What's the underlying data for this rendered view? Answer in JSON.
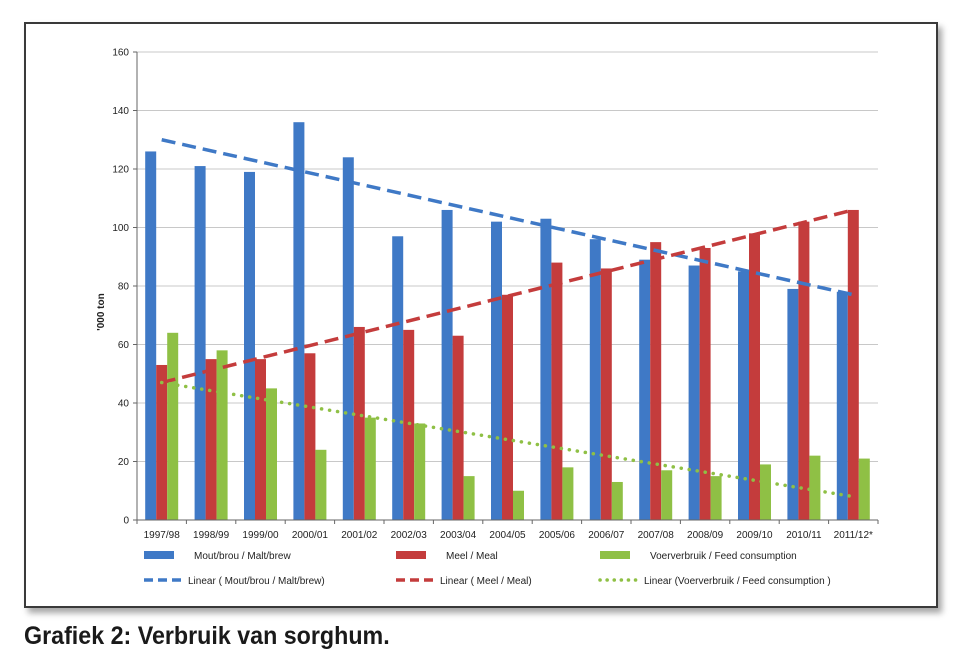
{
  "caption": "Grafiek 2: Verbruik van sorghum.",
  "chart_data": {
    "type": "bar",
    "categories": [
      "1997/98",
      "1998/99",
      "1999/00",
      "2000/01",
      "2001/02",
      "2002/03",
      "2003/04",
      "2004/05",
      "2005/06",
      "2006/07",
      "2007/08",
      "2008/09",
      "2009/10",
      "2010/11",
      "2011/12*"
    ],
    "ylabel": "'000 ton",
    "ylim": [
      0,
      160
    ],
    "yticks": [
      0,
      20,
      40,
      60,
      80,
      100,
      120,
      140,
      160
    ],
    "grid": true,
    "legend_position": "bottom",
    "series": [
      {
        "name": "Mout/brou / Malt/brew",
        "color": "#3f79c6",
        "values": [
          126,
          121,
          119,
          136,
          124,
          97,
          106,
          102,
          103,
          96,
          89,
          87,
          85,
          79,
          78
        ]
      },
      {
        "name": "Meel / Meal",
        "color": "#c43c3c",
        "values": [
          53,
          55,
          55,
          57,
          66,
          65,
          63,
          77,
          88,
          86,
          95,
          93,
          98,
          102,
          106
        ]
      },
      {
        "name": "Voerverbruik / Feed consumption",
        "color": "#8fc045",
        "values": [
          64,
          58,
          45,
          24,
          35,
          33,
          15,
          10,
          18,
          13,
          17,
          15,
          19,
          22,
          21
        ]
      }
    ],
    "trendlines": [
      {
        "name": "Linear (  Mout/brou / Malt/brew)",
        "color": "#3f79c6",
        "style": "dashed",
        "start": 130,
        "end": 77
      },
      {
        "name": "Linear (  Meel / Meal)",
        "color": "#c43c3c",
        "style": "dashed",
        "start": 47,
        "end": 106
      },
      {
        "name": "Linear (Voerverbruik / Feed consumption  )",
        "color": "#8fc045",
        "style": "dotted",
        "start": 47,
        "end": 8
      }
    ]
  }
}
